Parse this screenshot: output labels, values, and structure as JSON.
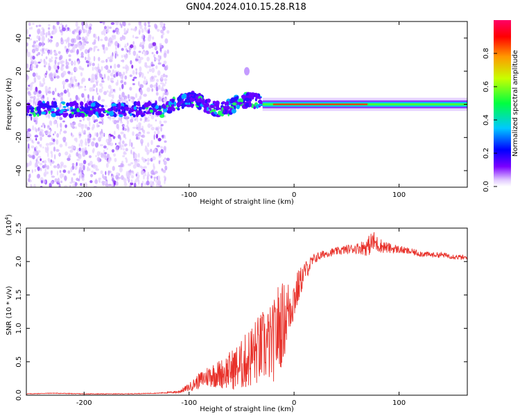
{
  "title": "GN04.2024.010.15.28.R18",
  "chart_data": [
    {
      "type": "heatmap",
      "xlabel": "Height of straight line (km)",
      "ylabel": "Frequency (Hz)",
      "xlim": [
        -255,
        165
      ],
      "ylim": [
        -50,
        50
      ],
      "xticks": [
        -200,
        -100,
        0,
        100
      ],
      "xtick_labels": [
        "-200",
        "-100",
        "0",
        "100"
      ],
      "yticks": [
        40,
        20,
        0,
        -20,
        -40
      ],
      "ytick_labels": [
        "40",
        "20",
        "0",
        "-20",
        "-40"
      ],
      "colorbar": {
        "label": "Normalized spectral amplitude",
        "range": [
          0,
          1
        ],
        "ticks": [
          0,
          0.2,
          0.4,
          0.6,
          0.8
        ],
        "tick_labels": [
          "0.0",
          "0.2",
          "0.4",
          "0.6",
          "0.8"
        ],
        "colors": [
          "#ffffff",
          "#7b00ff",
          "#0000ff",
          "#00c8ff",
          "#00ff40",
          "#c8ff00",
          "#ff9900",
          "#ff0000",
          "#ff0066"
        ]
      },
      "features": [
        {
          "region": "noise",
          "x_range": [
            -255,
            -120
          ],
          "freq_range": [
            -50,
            50
          ],
          "amplitude": 0.1
        },
        {
          "region": "band",
          "x_range": [
            -255,
            -120
          ],
          "freq_center": -3,
          "amplitude": 0.35
        },
        {
          "region": "band",
          "x_range": [
            -120,
            -30
          ],
          "freq_center": 0,
          "amplitude": 0.5
        },
        {
          "region": "band",
          "x_range": [
            -30,
            165
          ],
          "freq_center": 0,
          "amplitude": 0.9
        },
        {
          "region": "spot",
          "x": -45,
          "freq": 20,
          "amplitude": 0.15
        }
      ]
    },
    {
      "type": "line",
      "xlabel": "Height of straight line (km)",
      "ylabel": "SNR (10 * v/v)",
      "y_multiplier_label": "(x10",
      "y_multiplier_exp": "4",
      "y_multiplier_close": ")",
      "xlim": [
        -255,
        165
      ],
      "ylim": [
        0,
        2.5
      ],
      "xticks": [
        -200,
        -100,
        0,
        100
      ],
      "xtick_labels": [
        "-200",
        "-100",
        "0",
        "100"
      ],
      "yticks": [
        0.0,
        0.5,
        1.0,
        1.5,
        2.0,
        2.5
      ],
      "ytick_labels": [
        "0.0",
        "0.5",
        "1.0",
        "1.5",
        "2.0",
        "2.5"
      ],
      "color": "#e8312a",
      "series": [
        {
          "name": "SNR",
          "x": [
            -255,
            -230,
            -200,
            -160,
            -130,
            -110,
            -100,
            -90,
            -80,
            -70,
            -60,
            -50,
            -40,
            -30,
            -20,
            -15,
            -10,
            -5,
            0,
            5,
            10,
            20,
            30,
            40,
            50,
            60,
            70,
            75,
            80,
            90,
            100,
            110,
            120,
            130,
            140,
            150,
            165
          ],
          "y": [
            0.02,
            0.03,
            0.02,
            0.02,
            0.03,
            0.05,
            0.12,
            0.22,
            0.3,
            0.32,
            0.38,
            0.45,
            0.6,
            0.72,
            0.78,
            1.0,
            1.1,
            1.3,
            1.45,
            1.65,
            1.85,
            2.05,
            2.12,
            2.15,
            2.18,
            2.2,
            2.22,
            2.3,
            2.25,
            2.2,
            2.18,
            2.15,
            2.12,
            2.1,
            2.1,
            2.08,
            2.05
          ],
          "noise": [
            0.005,
            0.005,
            0.005,
            0.005,
            0.005,
            0.02,
            0.06,
            0.12,
            0.18,
            0.22,
            0.3,
            0.38,
            0.5,
            0.55,
            0.6,
            0.7,
            0.6,
            0.45,
            0.35,
            0.25,
            0.15,
            0.08,
            0.06,
            0.06,
            0.07,
            0.08,
            0.14,
            0.18,
            0.12,
            0.08,
            0.06,
            0.05,
            0.05,
            0.04,
            0.04,
            0.04,
            0.04
          ]
        }
      ]
    }
  ]
}
